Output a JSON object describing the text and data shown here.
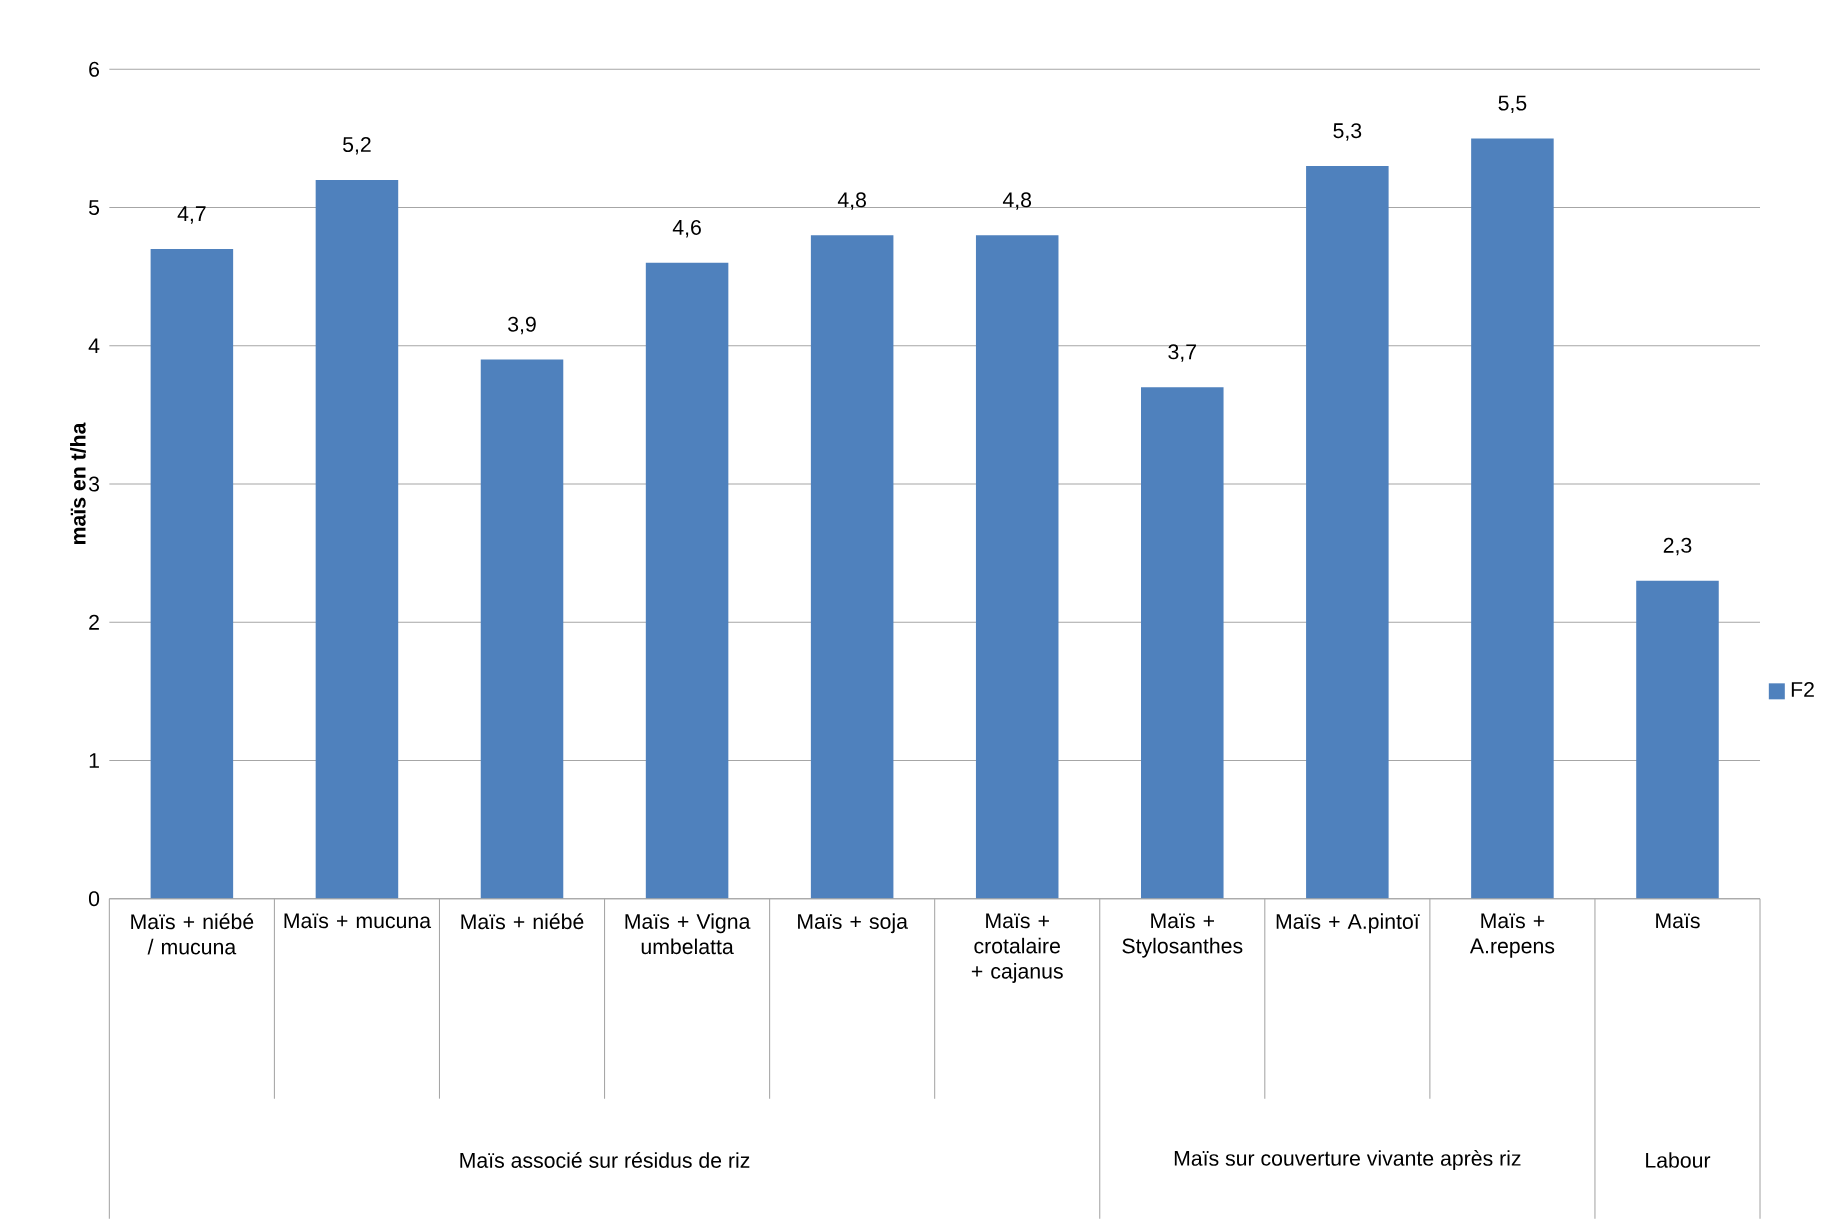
{
  "chart_data": {
    "type": "bar",
    "ylabel": "maïs en t/ha",
    "categories": [
      "Maïs + niébé / mucuna",
      "Maïs + mucuna",
      "Maïs + niébé",
      "Maïs + Vigna umbelatta",
      "Maïs + soja",
      "Maïs + crotalaire + cajanus",
      "Maïs + Stylosanthes",
      "Maïs + A.pintoï",
      "Maïs + A.repens",
      "Maïs"
    ],
    "series": [
      {
        "name": "F2",
        "color": "#4f81bd",
        "values": [
          4.7,
          5.2,
          3.9,
          4.6,
          4.8,
          4.8,
          3.7,
          5.3,
          5.5,
          2.3
        ],
        "value_labels": [
          "4,7",
          "5,2",
          "3,9",
          "4,6",
          "4,8",
          "4,8",
          "3,7",
          "5,3",
          "5,5",
          "2,3"
        ]
      }
    ],
    "ylim": [
      0,
      6
    ],
    "yticks": [
      0,
      1,
      2,
      3,
      4,
      5,
      6
    ],
    "grid": "y",
    "legend": "right",
    "annotations": [
      "Maïs associé sur résidus de riz",
      "Maïs sur couverture vivante après riz",
      "Labour"
    ]
  }
}
